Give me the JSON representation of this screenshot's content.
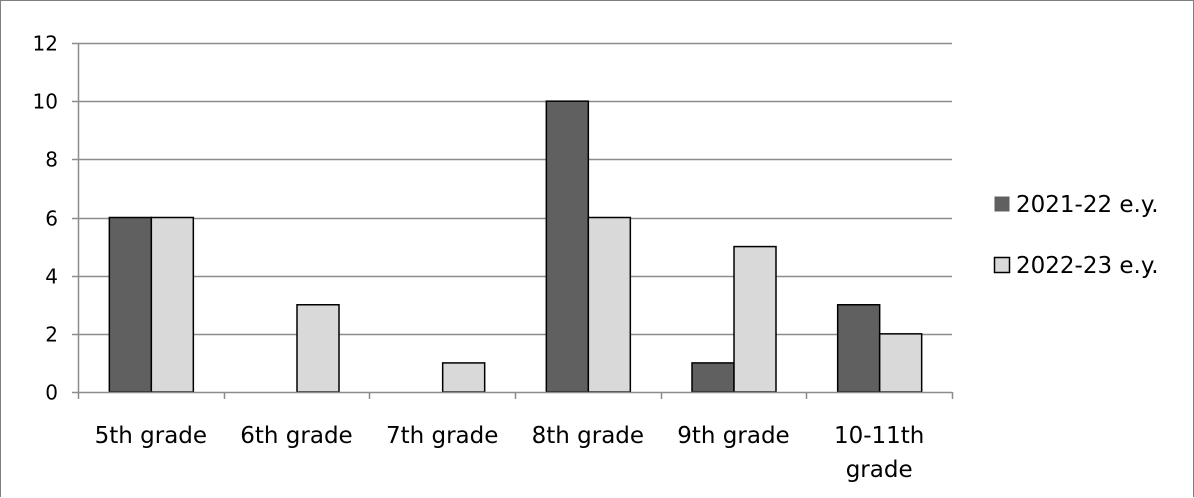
{
  "chart_data": {
    "type": "bar",
    "title": "",
    "xlabel": "",
    "ylabel": "",
    "categories": [
      [
        "5th grade"
      ],
      [
        "6th grade"
      ],
      [
        "7th grade"
      ],
      [
        "8th grade"
      ],
      [
        "9th grade"
      ],
      [
        "10-11th",
        "grade"
      ]
    ],
    "series": [
      {
        "name": "2021-22 e.y.",
        "color": "#606060",
        "values": [
          6,
          0,
          0,
          10,
          1,
          3
        ]
      },
      {
        "name": "2022-23 e.y.",
        "color": "#d9d9d9",
        "values": [
          6,
          3,
          1,
          6,
          5,
          2
        ]
      }
    ],
    "ylim": [
      0,
      12
    ],
    "yticks": [
      0,
      2,
      4,
      6,
      8,
      10,
      12
    ],
    "grid": true,
    "legend": "right"
  }
}
